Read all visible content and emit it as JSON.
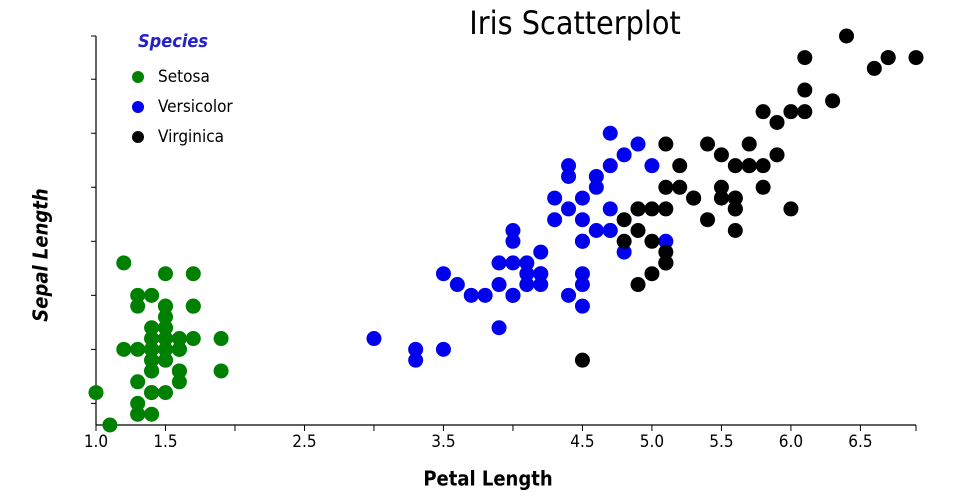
{
  "chart_data": {
    "type": "scatter",
    "title": "Iris Scatterplot",
    "x_label": "Petal Length",
    "y_label": "Sepal Length",
    "legend_title": "Species",
    "legend_position": "upper left",
    "xlim": [
      1.0,
      6.9
    ],
    "ylim": [
      4.3,
      7.9
    ],
    "xticks": [
      {
        "value": 1,
        "label": "1.0"
      },
      1.5,
      2,
      2.5,
      3,
      3.5,
      4,
      4.5,
      {
        "value": 5,
        "label": "5.0"
      },
      5.5,
      {
        "value": 6,
        "label": "6.0"
      },
      6.5
    ],
    "xtick_labels_shown": [
      true,
      true,
      false,
      true,
      false,
      true,
      false,
      true,
      true,
      true,
      true,
      true
    ],
    "yticks": [
      4.5,
      5.0,
      5.5,
      6.0,
      6.5,
      7.0,
      7.5
    ],
    "ytick_labels_shown": false,
    "series": [
      {
        "name": "Setosa",
        "color": "#008000",
        "x": [
          1.4,
          1.4,
          1.3,
          1.5,
          1.4,
          1.7,
          1.4,
          1.5,
          1.4,
          1.5,
          1.5,
          1.6,
          1.4,
          1.1,
          1.2,
          1.5,
          1.3,
          1.4,
          1.7,
          1.5,
          1.7,
          1.5,
          1.0,
          1.7,
          1.9,
          1.6,
          1.6,
          1.5,
          1.4,
          1.6,
          1.6,
          1.5,
          1.5,
          1.4,
          1.5,
          1.2,
          1.3,
          1.4,
          1.3,
          1.5,
          1.3,
          1.3,
          1.3,
          1.6,
          1.9,
          1.4,
          1.6,
          1.4,
          1.5,
          1.4
        ],
        "y": [
          5.1,
          4.9,
          4.7,
          4.6,
          5.0,
          5.4,
          4.6,
          5.0,
          4.4,
          4.9,
          5.4,
          4.8,
          4.8,
          4.3,
          5.8,
          5.7,
          5.4,
          5.1,
          5.7,
          5.1,
          5.4,
          5.1,
          4.6,
          5.1,
          4.8,
          5.0,
          5.0,
          5.2,
          5.2,
          4.7,
          4.8,
          5.4,
          5.2,
          5.5,
          4.9,
          5.0,
          5.5,
          4.9,
          4.4,
          5.1,
          5.0,
          4.5,
          4.4,
          5.0,
          5.1,
          4.8,
          5.1,
          4.6,
          5.3,
          5.0
        ]
      },
      {
        "name": "Versicolor",
        "color": "#0000ee",
        "x": [
          4.7,
          4.5,
          4.9,
          4.0,
          4.6,
          4.5,
          4.7,
          3.3,
          4.6,
          3.9,
          3.5,
          4.2,
          4.0,
          4.7,
          3.6,
          4.4,
          4.5,
          4.1,
          4.5,
          3.9,
          4.8,
          4.0,
          4.9,
          4.7,
          4.3,
          4.4,
          4.8,
          5.0,
          4.5,
          3.5,
          3.8,
          3.7,
          3.9,
          5.1,
          4.5,
          4.5,
          4.7,
          4.4,
          4.1,
          4.0,
          4.4,
          4.6,
          4.0,
          3.3,
          4.2,
          4.2,
          4.2,
          4.3,
          3.0,
          4.1
        ],
        "y": [
          7.0,
          6.4,
          6.9,
          5.5,
          6.5,
          5.7,
          6.3,
          4.9,
          6.6,
          5.2,
          5.0,
          5.9,
          6.0,
          6.1,
          5.6,
          6.7,
          5.6,
          5.8,
          6.2,
          5.6,
          5.9,
          6.1,
          6.3,
          6.1,
          6.4,
          6.6,
          6.8,
          6.7,
          6.0,
          5.7,
          5.5,
          5.5,
          5.8,
          6.0,
          5.4,
          6.0,
          6.7,
          6.3,
          5.6,
          5.5,
          5.5,
          6.1,
          5.8,
          5.0,
          5.6,
          5.7,
          5.7,
          6.2,
          5.1,
          5.7
        ]
      },
      {
        "name": "Virginica",
        "color": "#000000",
        "x": [
          6.0,
          5.1,
          5.9,
          5.6,
          5.8,
          6.6,
          4.5,
          6.3,
          5.8,
          6.1,
          5.1,
          5.3,
          5.5,
          5.0,
          5.1,
          5.3,
          5.5,
          6.7,
          6.9,
          5.0,
          5.7,
          4.9,
          6.7,
          4.9,
          5.7,
          6.0,
          4.8,
          4.9,
          5.6,
          5.8,
          6.1,
          6.4,
          5.6,
          5.1,
          5.6,
          6.1,
          5.6,
          5.5,
          4.8,
          5.4,
          5.6,
          5.1,
          5.1,
          5.9,
          5.7,
          5.2,
          5.0,
          5.2,
          5.4,
          5.1
        ],
        "y": [
          6.3,
          5.8,
          7.1,
          6.3,
          6.5,
          7.6,
          4.9,
          7.3,
          6.7,
          7.2,
          6.5,
          6.4,
          6.8,
          5.7,
          5.8,
          6.4,
          6.5,
          7.7,
          7.7,
          6.0,
          6.9,
          5.6,
          7.7,
          6.3,
          6.7,
          7.2,
          6.2,
          6.1,
          6.4,
          7.2,
          7.4,
          7.9,
          6.4,
          6.3,
          6.1,
          7.7,
          6.3,
          6.4,
          6.0,
          6.9,
          6.7,
          6.9,
          5.8,
          6.8,
          6.7,
          6.7,
          6.3,
          6.5,
          6.2,
          5.9
        ]
      }
    ]
  }
}
